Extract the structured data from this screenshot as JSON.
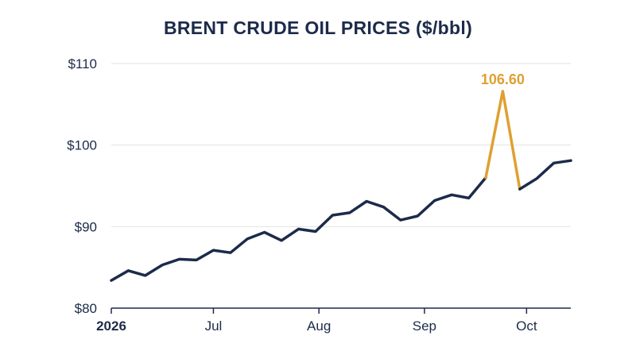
{
  "chart_data": {
    "type": "line",
    "title": "BRENT CRUDE OIL PRICES ($/bbl)",
    "xlabel": "",
    "ylabel": "",
    "ylim": [
      80,
      110
    ],
    "y_ticks": [
      80,
      90,
      100,
      110
    ],
    "y_tick_labels": [
      "$80",
      "$90",
      "$100",
      "$110"
    ],
    "x_ticks": [
      {
        "date": "2026-06-01",
        "label": "2026",
        "bold": true
      },
      {
        "date": "2026-07-01",
        "label": "Jul",
        "bold": false
      },
      {
        "date": "2026-08-01",
        "label": "Aug",
        "bold": false
      },
      {
        "date": "2026-09-01",
        "label": "Sep",
        "bold": false
      },
      {
        "date": "2026-10-01",
        "label": "Oct",
        "bold": false
      }
    ],
    "grid": true,
    "colors": {
      "main_line": "#1c2b4a",
      "highlight_line": "#dfa032",
      "grid": "#e2e2e2",
      "axis": "#1c2b4a"
    },
    "series": [
      {
        "values": [
          {
            "x": "2026-06-01",
            "y": 83.4
          },
          {
            "x": "2026-06-06",
            "y": 84.6
          },
          {
            "x": "2026-06-11",
            "y": 84.0
          },
          {
            "x": "2026-06-16",
            "y": 85.3
          },
          {
            "x": "2026-06-21",
            "y": 86.0
          },
          {
            "x": "2026-06-26",
            "y": 85.9
          },
          {
            "x": "2026-07-01",
            "y": 87.1
          },
          {
            "x": "2026-07-06",
            "y": 86.8
          },
          {
            "x": "2026-07-11",
            "y": 88.5
          },
          {
            "x": "2026-07-16",
            "y": 89.3
          },
          {
            "x": "2026-07-21",
            "y": 88.3
          },
          {
            "x": "2026-07-26",
            "y": 89.7
          },
          {
            "x": "2026-07-31",
            "y": 89.4
          },
          {
            "x": "2026-08-05",
            "y": 91.4
          },
          {
            "x": "2026-08-10",
            "y": 91.7
          },
          {
            "x": "2026-08-15",
            "y": 93.1
          },
          {
            "x": "2026-08-20",
            "y": 92.4
          },
          {
            "x": "2026-08-25",
            "y": 90.8
          },
          {
            "x": "2026-08-30",
            "y": 91.3
          },
          {
            "x": "2026-09-04",
            "y": 93.2
          },
          {
            "x": "2026-09-09",
            "y": 93.9
          },
          {
            "x": "2026-09-14",
            "y": 93.5
          },
          {
            "x": "2026-09-19",
            "y": 96.0
          },
          {
            "x": "2026-09-24",
            "y": 106.6
          },
          {
            "x": "2026-09-29",
            "y": 94.6
          },
          {
            "x": "2026-10-04",
            "y": 95.9
          },
          {
            "x": "2026-10-09",
            "y": 97.8
          },
          {
            "x": "2026-10-14",
            "y": 98.1
          }
        ]
      }
    ],
    "highlight": {
      "from_index": 22,
      "to_index": 24,
      "peak_index": 23,
      "label": "106.60"
    }
  }
}
